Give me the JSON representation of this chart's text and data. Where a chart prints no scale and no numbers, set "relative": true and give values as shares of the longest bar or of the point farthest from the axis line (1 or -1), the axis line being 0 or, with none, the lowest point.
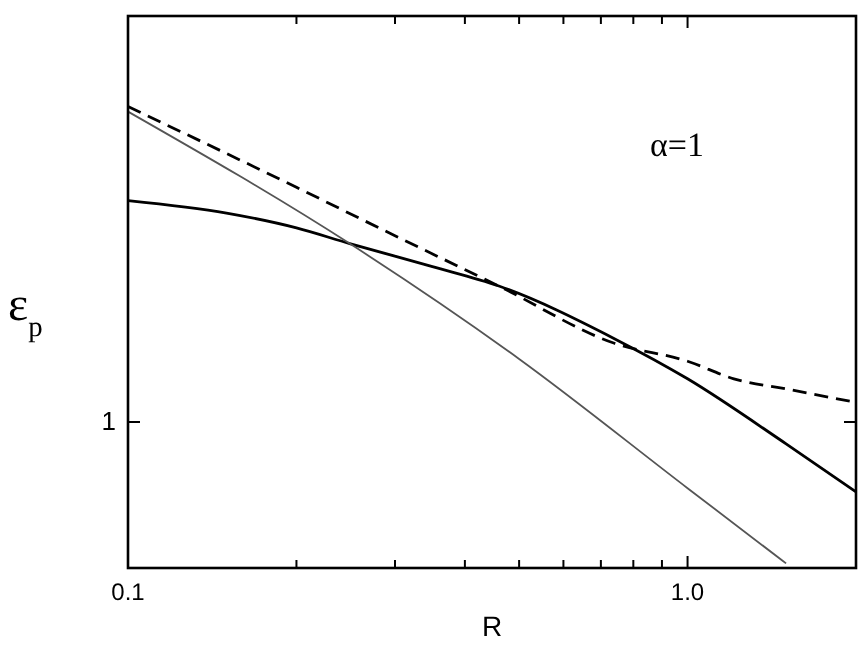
{
  "chart_data": {
    "type": "line",
    "xlabel": "R",
    "ylabel": "ε$_{p}$",
    "log": "x",
    "relative": true,
    "xlim": [
      0.1,
      2
    ],
    "xticks": [
      {
        "value": 0.1,
        "label": "0.1"
      },
      {
        "value": 0.2,
        "label": null
      },
      {
        "value": 0.3,
        "label": null
      },
      {
        "value": 0.4,
        "label": null
      },
      {
        "value": 0.5,
        "label": null
      },
      {
        "value": 0.6,
        "label": null
      },
      {
        "value": 0.7,
        "label": null
      },
      {
        "value": 0.8,
        "label": null
      },
      {
        "value": 0.9,
        "label": null
      },
      {
        "value": 1,
        "label": "1.0"
      },
      {
        "value": 2,
        "label": null
      }
    ],
    "annotations": [
      "α=1",
      "1"
    ],
    "series": [
      {
        "color": "#000000",
        "line_style": "solid",
        "x": [
          0.1,
          0.15,
          0.2,
          0.249,
          0.35,
          0.46,
          0.74,
          1,
          1.5,
          2
        ],
        "values": [
          0.796,
          0.769,
          0.737,
          0.703,
          0.653,
          0.611,
          0.497,
          0.41,
          0.269,
          0.165
        ]
      },
      {
        "color": "#000000",
        "line_style": "dashed",
        "x": [
          0.1,
          0.2,
          0.3,
          0.46,
          0.74,
          1,
          1.21,
          1.5,
          2
        ],
        "values": [
          1,
          0.825,
          0.72,
          0.611,
          0.487,
          0.448,
          0.41,
          0.388,
          0.359
        ]
      },
      {
        "color": "#555555",
        "line_style": "solid",
        "x": [
          0.1,
          0.249,
          0.5,
          1,
          1.5
        ],
        "values": [
          0.989,
          0.703,
          0.453,
          0.173,
          0.01
        ]
      }
    ]
  }
}
